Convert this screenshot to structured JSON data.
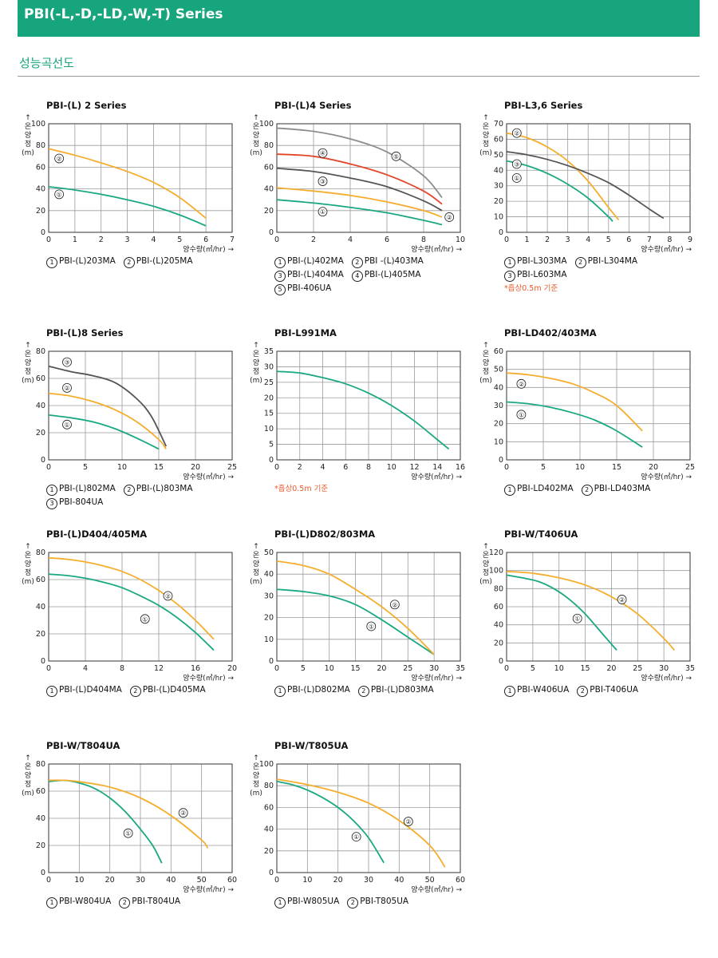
{
  "header": {
    "title": "PBI(-L,-D,-LD,-W,-T) Series"
  },
  "section": {
    "title": "성능곡선도"
  },
  "ylabel_text": "↑\n온\n양\n정\n(m)",
  "xlabel_text": "양수량(㎥/hr) →",
  "colors": {
    "green": "#1aa883",
    "orange": "#f5ad2d",
    "gray": "#8c8c8c",
    "red": "#e2462a",
    "dark": "#555555",
    "accent": "#16a57c"
  },
  "chart_data": [
    {
      "type": "line",
      "title": "PBI-(L) 2 Series",
      "xlim": [
        0,
        7
      ],
      "ylim": [
        0,
        100
      ],
      "xticks": [
        0,
        1,
        2,
        3,
        4,
        5,
        6,
        7
      ],
      "yticks": [
        0,
        20,
        40,
        60,
        80,
        100
      ],
      "series": [
        {
          "marker": "①",
          "color": "green",
          "x": [
            0,
            1,
            2,
            3,
            4,
            5,
            6
          ],
          "y": [
            42,
            39,
            35,
            30,
            24,
            16,
            6
          ],
          "label_at": [
            0.4,
            35
          ]
        },
        {
          "marker": "②",
          "color": "orange",
          "x": [
            0,
            1,
            2,
            3,
            4,
            5,
            6
          ],
          "y": [
            77,
            71,
            64,
            56,
            46,
            32,
            13
          ],
          "label_at": [
            0.4,
            68
          ]
        }
      ],
      "legend": [
        [
          "①",
          "PBI-(L)203MA",
          "②",
          "PBI-(L)205MA"
        ]
      ],
      "note": ""
    },
    {
      "type": "line",
      "title": "PBI-(L)4 Series",
      "xlim": [
        0,
        10
      ],
      "ylim": [
        0,
        100
      ],
      "xticks": [
        0,
        2,
        4,
        6,
        8,
        10
      ],
      "yticks": [
        0,
        20,
        40,
        60,
        80,
        100
      ],
      "series": [
        {
          "marker": "①",
          "color": "green",
          "x": [
            0,
            2,
            4,
            6,
            8,
            9
          ],
          "y": [
            30,
            27,
            23,
            18,
            11,
            7
          ],
          "label_at": [
            2.5,
            19
          ]
        },
        {
          "marker": "②",
          "color": "orange",
          "x": [
            0,
            2,
            4,
            6,
            8,
            9
          ],
          "y": [
            41,
            38,
            34,
            28,
            20,
            14
          ],
          "label_at": [
            9.4,
            14
          ]
        },
        {
          "marker": "③",
          "color": "dark",
          "x": [
            0,
            2,
            4,
            6,
            8,
            9
          ],
          "y": [
            59,
            56,
            50,
            42,
            29,
            20
          ],
          "label_at": [
            2.5,
            47
          ]
        },
        {
          "marker": "④",
          "color": "red",
          "x": [
            0,
            2,
            4,
            6,
            8,
            9
          ],
          "y": [
            72,
            70,
            63,
            53,
            38,
            26
          ],
          "label_at": [
            2.5,
            73
          ]
        },
        {
          "marker": "⑤",
          "color": "gray",
          "x": [
            0,
            2,
            4,
            6,
            8,
            9
          ],
          "y": [
            96,
            93,
            86,
            74,
            52,
            32
          ],
          "label_at": [
            6.5,
            70
          ]
        }
      ],
      "legend": [
        [
          "①",
          "PBI-(L)402MA",
          "②",
          "PBI -(L)403MA"
        ],
        [
          "③",
          "PBI-(L)404MA",
          "④",
          "PBI-(L)405MA"
        ],
        [
          "⑤",
          "PBI-406UA"
        ]
      ],
      "note": ""
    },
    {
      "type": "line",
      "title": "PBI-L3,6 Series",
      "xlim": [
        0,
        9
      ],
      "ylim": [
        0,
        70
      ],
      "xticks": [
        0,
        1,
        2,
        3,
        4,
        5,
        6,
        7,
        8,
        9
      ],
      "yticks": [
        0,
        10,
        20,
        30,
        40,
        50,
        60,
        70
      ],
      "series": [
        {
          "marker": "①",
          "color": "green",
          "x": [
            0,
            1,
            2,
            3,
            4,
            5,
            5.2
          ],
          "y": [
            46,
            43,
            38,
            31,
            22,
            10,
            7
          ],
          "label_at": [
            0.5,
            35
          ]
        },
        {
          "marker": "②",
          "color": "orange",
          "x": [
            0,
            1,
            2,
            3,
            4,
            5,
            5.5
          ],
          "y": [
            64,
            61,
            55,
            46,
            33,
            16,
            8
          ],
          "label_at": [
            0.5,
            64
          ]
        },
        {
          "marker": "③",
          "color": "dark",
          "x": [
            0,
            1,
            2,
            3,
            4,
            5,
            6,
            7,
            7.7
          ],
          "y": [
            52,
            50,
            47,
            43,
            38,
            32,
            24,
            15,
            9
          ],
          "label_at": [
            0.5,
            44
          ]
        }
      ],
      "legend": [
        [
          "①",
          "PBI-L303MA",
          "②",
          "PBI-L304MA"
        ],
        [
          "③",
          "PBI-L603MA"
        ]
      ],
      "note": "*흡상0.5m 기준"
    },
    {
      "type": "line",
      "title": "PBI-(L)8 Series",
      "xlim": [
        0,
        25
      ],
      "ylim": [
        0,
        80
      ],
      "xticks": [
        0,
        5,
        10,
        15,
        20,
        25
      ],
      "yticks": [
        0,
        20,
        40,
        60,
        80
      ],
      "series": [
        {
          "marker": "①",
          "color": "green",
          "x": [
            0,
            3,
            6,
            9,
            12,
            15
          ],
          "y": [
            33,
            31,
            28,
            23,
            16,
            8
          ],
          "label_at": [
            2.5,
            26
          ]
        },
        {
          "marker": "②",
          "color": "orange",
          "x": [
            0,
            3,
            6,
            9,
            12,
            15,
            16
          ],
          "y": [
            49,
            47,
            43,
            37,
            28,
            15,
            8
          ],
          "label_at": [
            2.5,
            53
          ]
        },
        {
          "marker": "③",
          "color": "dark",
          "x": [
            0,
            3,
            6,
            9,
            12,
            14,
            16
          ],
          "y": [
            69,
            65,
            62,
            57,
            45,
            32,
            10
          ],
          "label_at": [
            2.5,
            72
          ]
        }
      ],
      "legend": [
        [
          "①",
          "PBI-(L)802MA",
          "②",
          "PBI-(L)803MA"
        ],
        [
          "③",
          "PBI-804UA"
        ]
      ],
      "note": ""
    },
    {
      "type": "line",
      "title": "PBI-L991MA",
      "xlim": [
        0,
        16
      ],
      "ylim": [
        0,
        35
      ],
      "xticks": [
        0,
        2,
        4,
        6,
        8,
        10,
        12,
        14,
        16
      ],
      "yticks": [
        0,
        5,
        10,
        15,
        20,
        25,
        30,
        35
      ],
      "series": [
        {
          "marker": "",
          "color": "green",
          "x": [
            0,
            2,
            4,
            6,
            8,
            10,
            12,
            14,
            15
          ],
          "y": [
            28.5,
            28,
            26.5,
            24.5,
            21.5,
            17.5,
            12.5,
            6.5,
            3.5
          ],
          "label_at": null
        }
      ],
      "legend": [],
      "note": "*흡상0.5m 기준"
    },
    {
      "type": "line",
      "title": "PBI-LD402/403MA",
      "xlim": [
        0,
        25
      ],
      "ylim": [
        0,
        60
      ],
      "xticks": [
        0,
        5,
        10,
        15,
        20,
        25
      ],
      "yticks": [
        0,
        10,
        20,
        30,
        40,
        50,
        60
      ],
      "series": [
        {
          "marker": "①",
          "color": "green",
          "x": [
            0,
            3,
            6,
            9,
            12,
            15,
            18.5
          ],
          "y": [
            32,
            31,
            29,
            26,
            22,
            16,
            7
          ],
          "label_at": [
            2,
            25
          ]
        },
        {
          "marker": "②",
          "color": "orange",
          "x": [
            0,
            3,
            6,
            9,
            12,
            15,
            18.5
          ],
          "y": [
            48,
            47,
            45,
            42,
            37,
            30,
            16
          ],
          "label_at": [
            2,
            42
          ]
        }
      ],
      "legend": [
        [
          "①",
          "PBI-LD402MA",
          "②",
          "PBI-LD403MA"
        ]
      ],
      "note": ""
    },
    {
      "type": "line",
      "title": "PBI-(L)D404/405MA",
      "xlim": [
        0,
        20
      ],
      "ylim": [
        0,
        80
      ],
      "xticks": [
        0,
        4,
        8,
        12,
        16,
        20
      ],
      "yticks": [
        0,
        20,
        40,
        60,
        80
      ],
      "series": [
        {
          "marker": "①",
          "color": "green",
          "x": [
            0,
            2,
            4,
            6,
            8,
            10,
            12,
            14,
            16,
            18
          ],
          "y": [
            64,
            63,
            61,
            58,
            54,
            48,
            41,
            32,
            21,
            8
          ],
          "label_at": [
            10.5,
            31
          ]
        },
        {
          "marker": "②",
          "color": "orange",
          "x": [
            0,
            2,
            4,
            6,
            8,
            10,
            12,
            14,
            16,
            18
          ],
          "y": [
            76,
            75,
            73,
            70,
            66,
            60,
            52,
            42,
            30,
            16
          ],
          "label_at": [
            13,
            48
          ]
        }
      ],
      "legend": [
        [
          "①",
          "PBI-(L)D404MA",
          "②",
          "PBI-(L)D405MA"
        ]
      ],
      "note": ""
    },
    {
      "type": "line",
      "title": "PBI-(L)D802/803MA",
      "xlim": [
        0,
        35
      ],
      "ylim": [
        0,
        50
      ],
      "xticks": [
        0,
        5,
        10,
        15,
        20,
        25,
        30,
        35
      ],
      "yticks": [
        0,
        10,
        20,
        30,
        40,
        50
      ],
      "series": [
        {
          "marker": "①",
          "color": "green",
          "x": [
            0,
            5,
            10,
            15,
            20,
            25,
            30
          ],
          "y": [
            33,
            32,
            30,
            26,
            19,
            11,
            3
          ],
          "label_at": [
            18,
            16
          ]
        },
        {
          "marker": "②",
          "color": "orange",
          "x": [
            0,
            5,
            10,
            15,
            20,
            25,
            30
          ],
          "y": [
            46,
            44,
            40,
            33,
            25,
            15,
            3
          ],
          "label_at": [
            22.5,
            26
          ]
        }
      ],
      "legend": [
        [
          "①",
          "PBI-(L)D802MA",
          "②",
          "PBI-(L)D803MA"
        ]
      ],
      "note": ""
    },
    {
      "type": "line",
      "title": "PBI-W/T406UA",
      "xlim": [
        0,
        35
      ],
      "ylim": [
        0,
        120
      ],
      "xticks": [
        0,
        5,
        10,
        15,
        20,
        25,
        30,
        35
      ],
      "yticks": [
        0,
        20,
        40,
        60,
        80,
        100,
        120
      ],
      "series": [
        {
          "marker": "①",
          "color": "green",
          "x": [
            0,
            3,
            6,
            9,
            12,
            15,
            18,
            21
          ],
          "y": [
            95,
            92,
            88,
            80,
            68,
            52,
            32,
            12
          ],
          "label_at": [
            13.5,
            47
          ]
        },
        {
          "marker": "②",
          "color": "orange",
          "x": [
            0,
            5,
            10,
            15,
            20,
            25,
            30,
            32
          ],
          "y": [
            99,
            97,
            92,
            84,
            71,
            52,
            25,
            12
          ],
          "label_at": [
            22,
            68
          ]
        }
      ],
      "legend": [
        [
          "①",
          "PBI-W406UA",
          "②",
          "PBI-T406UA"
        ]
      ],
      "note": ""
    },
    {
      "type": "line",
      "title": "PBI-W/T804UA",
      "xlim": [
        0,
        60
      ],
      "ylim": [
        0,
        80
      ],
      "xticks": [
        0,
        10,
        20,
        30,
        40,
        50,
        60
      ],
      "yticks": [
        0,
        20,
        40,
        60,
        80
      ],
      "series": [
        {
          "marker": "①",
          "color": "green",
          "x": [
            0,
            5,
            10,
            15,
            20,
            25,
            30,
            34,
            37
          ],
          "y": [
            67,
            68,
            66,
            62,
            55,
            45,
            32,
            20,
            7
          ],
          "label_at": [
            26,
            29
          ]
        },
        {
          "marker": "②",
          "color": "orange",
          "x": [
            0,
            5,
            10,
            20,
            30,
            40,
            50,
            52
          ],
          "y": [
            68,
            68,
            67,
            63,
            55,
            42,
            24,
            18
          ],
          "label_at": [
            44,
            44
          ]
        }
      ],
      "legend": [
        [
          "①",
          "PBI-W804UA",
          "②",
          "PBI-T804UA"
        ]
      ],
      "note": ""
    },
    {
      "type": "line",
      "title": "PBI-W/T805UA",
      "xlim": [
        0,
        60
      ],
      "ylim": [
        0,
        100
      ],
      "xticks": [
        0,
        10,
        20,
        30,
        40,
        50,
        60
      ],
      "yticks": [
        0,
        20,
        40,
        60,
        80,
        100
      ],
      "series": [
        {
          "marker": "①",
          "color": "green",
          "x": [
            0,
            5,
            10,
            15,
            20,
            25,
            30,
            35
          ],
          "y": [
            84,
            81,
            76,
            69,
            60,
            48,
            32,
            9
          ],
          "label_at": [
            26,
            33
          ]
        },
        {
          "marker": "②",
          "color": "orange",
          "x": [
            0,
            10,
            20,
            30,
            40,
            50,
            55
          ],
          "y": [
            86,
            81,
            74,
            64,
            48,
            25,
            5
          ],
          "label_at": [
            43,
            47
          ]
        }
      ],
      "legend": [
        [
          "①",
          "PBI-W805UA",
          "②",
          "PBI-T805UA"
        ]
      ],
      "note": ""
    }
  ]
}
